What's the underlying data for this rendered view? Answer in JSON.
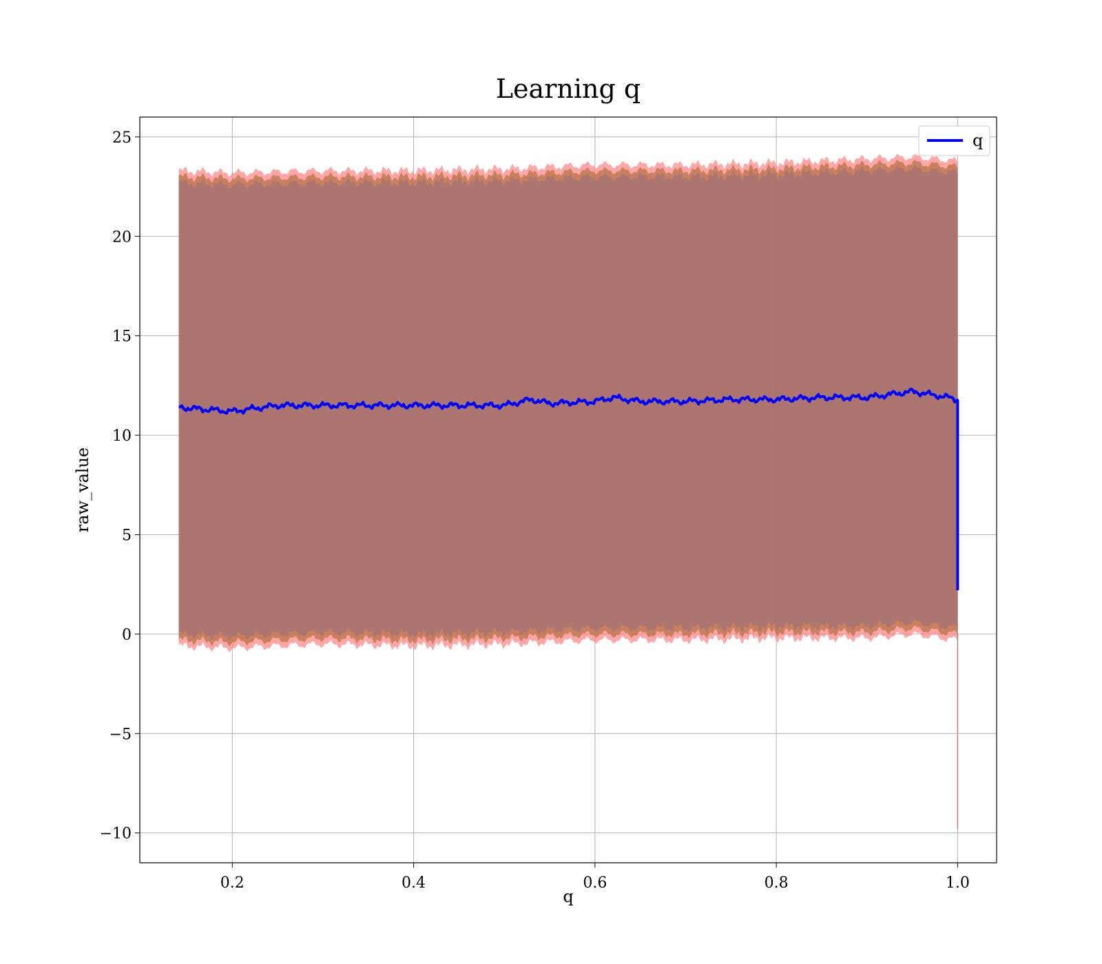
{
  "chart_data": {
    "type": "line",
    "title": "Learning q",
    "xlabel": "q",
    "ylabel": "raw_value",
    "xlim": [
      0.098,
      1.043
    ],
    "ylim": [
      -11.5,
      26
    ],
    "xticks": [
      0.2,
      0.4,
      0.6,
      0.8,
      1.0
    ],
    "xtick_labels": [
      "0.2",
      "0.4",
      "0.6",
      "0.8",
      "1.0"
    ],
    "yticks": [
      -10,
      -5,
      0,
      5,
      10,
      15,
      20,
      25
    ],
    "ytick_labels": [
      "−10",
      "−5",
      "0",
      "5",
      "10",
      "15",
      "20",
      "25"
    ],
    "grid": true,
    "legend": {
      "position": "top-right",
      "entries": [
        "q"
      ]
    },
    "series": [
      {
        "name": "q",
        "color": "#0000ff",
        "x": [
          0.141,
          0.2,
          0.25,
          0.3,
          0.35,
          0.4,
          0.45,
          0.5,
          0.53,
          0.55,
          0.6,
          0.62,
          0.65,
          0.7,
          0.75,
          0.8,
          0.85,
          0.9,
          0.95,
          0.99,
          1.0,
          1.0,
          1.0
        ],
        "y": [
          11.4,
          11.2,
          11.5,
          11.5,
          11.5,
          11.5,
          11.5,
          11.5,
          11.8,
          11.6,
          11.7,
          11.9,
          11.7,
          11.7,
          11.8,
          11.8,
          11.9,
          11.9,
          12.2,
          11.9,
          11.8,
          11.4,
          2.2
        ]
      }
    ],
    "bands": [
      {
        "role": "outer band",
        "color": "#ff8080",
        "x": [
          0.141,
          0.2,
          0.3,
          0.4,
          0.5,
          0.6,
          0.7,
          0.8,
          0.9,
          0.95,
          1.0
        ],
        "upper": [
          23.3,
          23.2,
          23.3,
          23.3,
          23.4,
          23.6,
          23.6,
          23.7,
          23.9,
          24.0,
          23.8
        ],
        "lower": [
          -0.6,
          -0.7,
          -0.5,
          -0.6,
          -0.5,
          -0.3,
          -0.3,
          -0.2,
          -0.2,
          0.0,
          -0.3
        ]
      },
      {
        "role": "middle band",
        "color": "#b07040",
        "x": [
          0.141,
          0.2,
          0.3,
          0.4,
          0.5,
          0.6,
          0.7,
          0.8,
          0.9,
          0.95,
          1.0
        ],
        "upper": [
          23.0,
          22.9,
          23.0,
          23.0,
          23.1,
          23.3,
          23.3,
          23.4,
          23.6,
          23.7,
          23.5
        ],
        "lower": [
          -0.3,
          -0.4,
          -0.2,
          -0.3,
          -0.2,
          0.0,
          0.0,
          0.1,
          0.1,
          0.3,
          0.0
        ]
      },
      {
        "role": "inner band",
        "color": "#a07078",
        "x": [
          0.141,
          0.2,
          0.3,
          0.4,
          0.5,
          0.6,
          0.7,
          0.8,
          0.9,
          0.95,
          1.0
        ],
        "upper": [
          22.7,
          22.6,
          22.7,
          22.7,
          22.8,
          23.0,
          23.0,
          23.1,
          23.3,
          23.4,
          23.2
        ],
        "lower": [
          0.0,
          -0.1,
          0.1,
          0.0,
          0.1,
          0.3,
          0.3,
          0.4,
          0.4,
          0.6,
          0.3
        ]
      }
    ],
    "spike": {
      "x": 1.0,
      "y_min": -9.8,
      "color": "#c08080"
    }
  }
}
